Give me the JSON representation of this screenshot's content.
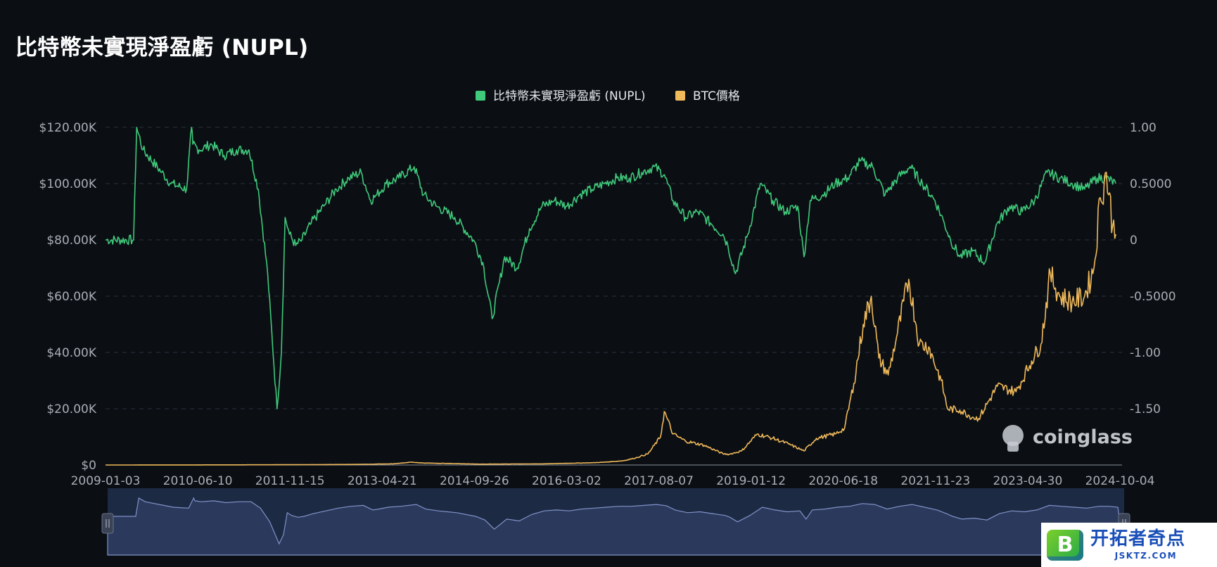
{
  "page": {
    "title": "比特幣未實現淨盈虧 (NUPL)"
  },
  "chart_data": {
    "type": "line",
    "title": "比特幣未實現淨盈虧 (NUPL)",
    "legend": [
      {
        "name": "比特幣未實現淨盈虧 (NUPL)",
        "color": "#3fc97a"
      },
      {
        "name": "BTC價格",
        "color": "#f0b95a"
      }
    ],
    "legend_position": "top-center",
    "grid": true,
    "x_tick_labels": [
      "2009-01-03",
      "2010-06-10",
      "2011-11-15",
      "2013-04-21",
      "2014-09-26",
      "2016-03-02",
      "2017-08-07",
      "2019-01-12",
      "2020-06-18",
      "2021-11-23",
      "2023-04-30",
      "2024-10-04"
    ],
    "x_range": [
      2009.0,
      2025.3
    ],
    "y_left": {
      "label": "",
      "ticks": [
        "$0",
        "$20.00K",
        "$40.00K",
        "$60.00K",
        "$80.00K",
        "$100.00K",
        "$120.00K"
      ],
      "range": [
        0,
        120000
      ]
    },
    "y_right": {
      "label": "",
      "ticks": [
        "-1.50",
        "-1.00",
        "-0.5000",
        "0",
        "0.5000",
        "1.00"
      ],
      "range": [
        -2.0,
        1.0
      ]
    },
    "series": [
      {
        "name": "比特幣未實現淨盈虧 (NUPL)",
        "axis": "right",
        "color": "#3fc97a",
        "x": [
          2009.0,
          2009.45,
          2009.5,
          2009.6,
          2009.9,
          2010.05,
          2010.3,
          2010.38,
          2010.4,
          2010.5,
          2010.7,
          2010.9,
          2011.1,
          2011.3,
          2011.45,
          2011.6,
          2011.75,
          2011.82,
          2011.88,
          2011.95,
          2012.05,
          2012.15,
          2012.3,
          2012.5,
          2012.7,
          2012.9,
          2013.1,
          2013.25,
          2013.35,
          2013.5,
          2013.7,
          2013.95,
          2014.1,
          2014.3,
          2014.6,
          2014.9,
          2015.05,
          2015.2,
          2015.4,
          2015.6,
          2015.8,
          2016.0,
          2016.2,
          2016.4,
          2016.6,
          2016.8,
          2017.0,
          2017.2,
          2017.4,
          2017.6,
          2017.8,
          2017.96,
          2018.1,
          2018.3,
          2018.5,
          2018.7,
          2018.9,
          2018.98,
          2019.1,
          2019.3,
          2019.5,
          2019.7,
          2019.9,
          2020.1,
          2020.2,
          2020.3,
          2020.5,
          2020.7,
          2020.9,
          2021.1,
          2021.3,
          2021.5,
          2021.7,
          2021.9,
          2022.1,
          2022.3,
          2022.45,
          2022.55,
          2022.7,
          2022.9,
          2023.1,
          2023.3,
          2023.5,
          2023.7,
          2023.9,
          2024.1,
          2024.3,
          2024.5,
          2024.7,
          2024.9,
          2025.05,
          2025.2
        ],
        "values": [
          0,
          0,
          1.0,
          0.8,
          0.6,
          0.5,
          0.45,
          1.0,
          0.85,
          0.8,
          0.85,
          0.75,
          0.8,
          0.8,
          0.45,
          -0.3,
          -1.5,
          -1.0,
          0.2,
          0.05,
          -0.05,
          0.0,
          0.15,
          0.3,
          0.45,
          0.55,
          0.6,
          0.35,
          0.4,
          0.5,
          0.55,
          0.65,
          0.4,
          0.3,
          0.2,
          0.0,
          -0.2,
          -0.7,
          -0.15,
          -0.25,
          0.1,
          0.3,
          0.35,
          0.3,
          0.4,
          0.45,
          0.5,
          0.55,
          0.55,
          0.6,
          0.65,
          0.58,
          0.35,
          0.2,
          0.25,
          0.15,
          0.05,
          -0.05,
          -0.3,
          0.05,
          0.5,
          0.35,
          0.25,
          0.3,
          -0.15,
          0.35,
          0.4,
          0.5,
          0.55,
          0.7,
          0.65,
          0.4,
          0.55,
          0.65,
          0.5,
          0.35,
          0.15,
          0.0,
          -0.15,
          -0.1,
          -0.2,
          0.15,
          0.3,
          0.25,
          0.35,
          0.6,
          0.55,
          0.5,
          0.45,
          0.55,
          0.55,
          0.5
        ]
      },
      {
        "name": "BTC價格",
        "axis": "left",
        "color": "#f0b95a",
        "x": [
          2009.0,
          2011.0,
          2012.0,
          2013.0,
          2013.6,
          2013.9,
          2014.1,
          2014.6,
          2015.0,
          2016.0,
          2016.8,
          2017.0,
          2017.3,
          2017.5,
          2017.7,
          2017.9,
          2017.96,
          2018.1,
          2018.3,
          2018.6,
          2018.9,
          2019.0,
          2019.2,
          2019.45,
          2019.7,
          2019.95,
          2020.2,
          2020.4,
          2020.7,
          2020.85,
          2021.0,
          2021.15,
          2021.28,
          2021.4,
          2021.55,
          2021.7,
          2021.88,
          2022.05,
          2022.2,
          2022.4,
          2022.5,
          2022.7,
          2022.9,
          2023.0,
          2023.3,
          2023.6,
          2023.85,
          2024.0,
          2024.15,
          2024.3,
          2024.5,
          2024.7,
          2024.85,
          2024.95,
          2025.05,
          2025.15,
          2025.2
        ],
        "values": [
          0,
          50,
          100,
          200,
          400,
          1000,
          700,
          500,
          300,
          400,
          800,
          1000,
          1500,
          2500,
          4000,
          10000,
          19000,
          11000,
          8500,
          7000,
          4000,
          3800,
          5000,
          11000,
          9500,
          7500,
          5000,
          9500,
          11000,
          13000,
          29000,
          50000,
          60000,
          38000,
          32000,
          47000,
          66000,
          43000,
          42000,
          30000,
          20000,
          19500,
          17000,
          16500,
          28000,
          26000,
          37000,
          43000,
          68000,
          60000,
          58000,
          60000,
          70000,
          95000,
          104000,
          85000,
          82000
        ]
      }
    ]
  }
}
